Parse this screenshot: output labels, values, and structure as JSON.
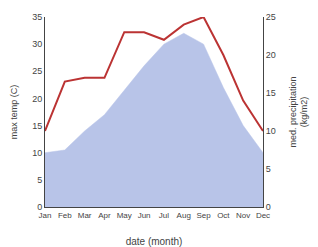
{
  "chart_data": {
    "type": "line",
    "categories": [
      "Jan",
      "Feb",
      "Mar",
      "Apr",
      "May",
      "Jun",
      "Jul",
      "Aug",
      "Sep",
      "Oct",
      "Nov",
      "Dec"
    ],
    "series": [
      {
        "type": "area",
        "color": "#b8c4e8",
        "values": [
          10.0,
          10.5,
          14.0,
          17.0,
          21.5,
          26.0,
          30.0,
          32.0,
          30.0,
          22.0,
          15.0,
          10.0
        ]
      },
      {
        "type": "line",
        "color": "#bb3333",
        "axis": "y2",
        "values": [
          10.0,
          16.5,
          17.0,
          17.0,
          23.0,
          23.0,
          22.0,
          24.0,
          25.0,
          20.0,
          14.0,
          10.0
        ]
      }
    ],
    "xlabel": "date (month)",
    "ylabel": "max temp (C)",
    "y2label": "med. precipitation\n(kg/m2)",
    "ylim": [
      0,
      35
    ],
    "yticks": [
      0,
      5,
      10,
      15,
      20,
      25,
      30,
      35
    ],
    "y2lim": [
      0,
      25
    ],
    "y2ticks": [
      0,
      5,
      10,
      15,
      20,
      25
    ],
    "grid": false
  }
}
